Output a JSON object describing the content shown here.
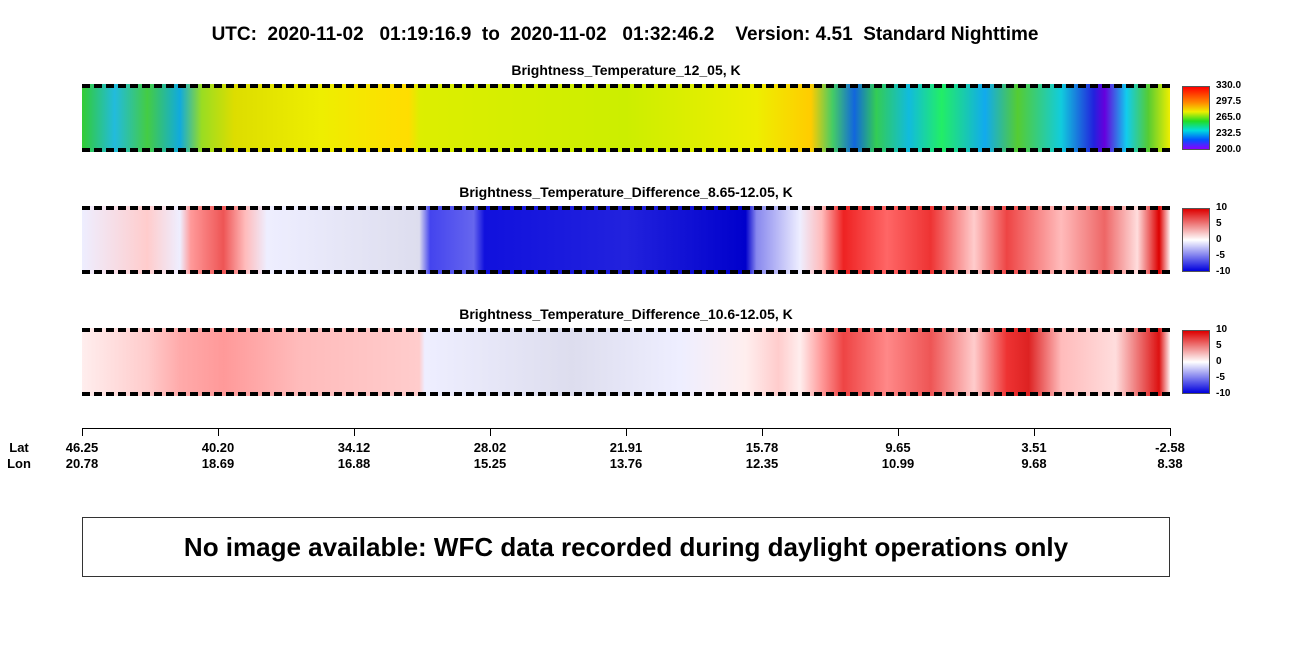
{
  "header": {
    "title": "UTC:  2020-11-02   01:19:16.9  to  2020-11-02   01:32:46.2    Version: 4.51  Standard Nighttime"
  },
  "panels": [
    {
      "title": "Brightness_Temperature_12_05, K",
      "colorbar_labels": [
        "330.0",
        "297.5",
        "265.0",
        "232.5",
        "200.0"
      ]
    },
    {
      "title": "Brightness_Temperature_Difference_8.65-12.05, K",
      "colorbar_labels": [
        "10",
        "5",
        "0",
        "-5",
        "-10"
      ]
    },
    {
      "title": "Brightness_Temperature_Difference_10.6-12.05, K",
      "colorbar_labels": [
        "10",
        "5",
        "0",
        "-5",
        "-10"
      ]
    }
  ],
  "axis": {
    "lat_label": "Lat",
    "lon_label": "Lon",
    "ticks": [
      {
        "lat": "46.25",
        "lon": "20.78"
      },
      {
        "lat": "40.20",
        "lon": "18.69"
      },
      {
        "lat": "34.12",
        "lon": "16.88"
      },
      {
        "lat": "28.02",
        "lon": "15.25"
      },
      {
        "lat": "21.91",
        "lon": "13.76"
      },
      {
        "lat": "15.78",
        "lon": "12.35"
      },
      {
        "lat": "9.65",
        "lon": "10.99"
      },
      {
        "lat": "3.51",
        "lon": "9.68"
      },
      {
        "lat": "-2.58",
        "lon": "8.38"
      }
    ]
  },
  "notice": "No image available: WFC data recorded during daylight operations only"
}
